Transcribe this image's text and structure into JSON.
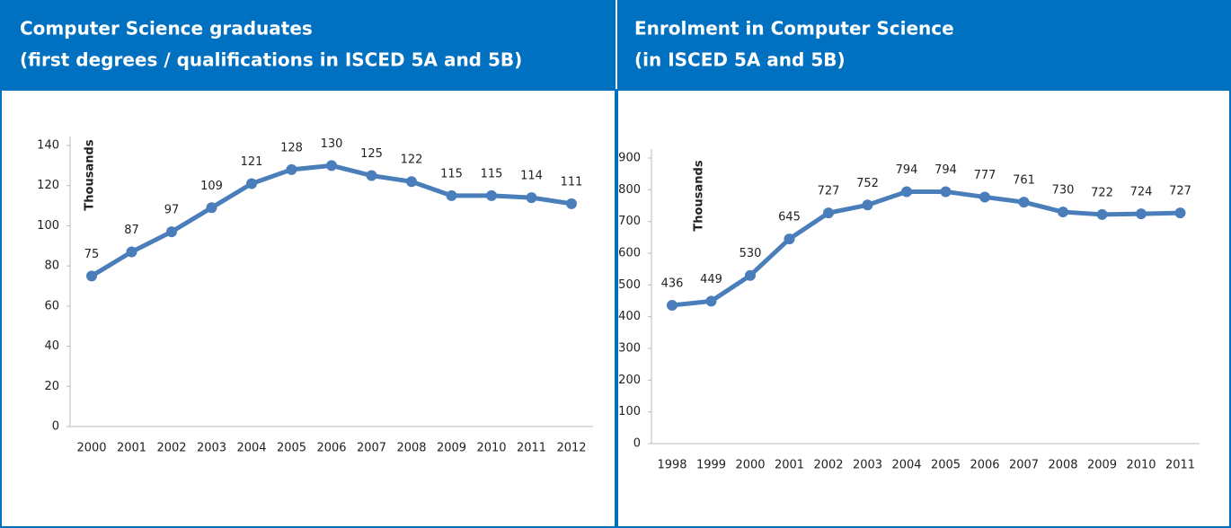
{
  "chart_data": [
    {
      "type": "line",
      "title": "Computer Science graduates",
      "subtitle": "(first degrees / qualifications in ISCED 5A and 5B)",
      "y_label": "Thousands",
      "color": "#4a7ebb",
      "categories": [
        "2000",
        "2001",
        "2002",
        "2003",
        "2004",
        "2005",
        "2006",
        "2007",
        "2008",
        "2009",
        "2010",
        "2011",
        "2012"
      ],
      "values": [
        75,
        87,
        97,
        109,
        121,
        128,
        130,
        125,
        122,
        115,
        115,
        114,
        111
      ],
      "ylim": [
        0,
        140
      ],
      "yticks": [
        0,
        20,
        40,
        60,
        80,
        100,
        120,
        140
      ]
    },
    {
      "type": "line",
      "title": "Enrolment in Computer Science",
      "subtitle": "(in ISCED 5A and 5B)",
      "y_label": "Thousands",
      "color": "#4a7ebb",
      "categories": [
        "1998",
        "1999",
        "2000",
        "2001",
        "2002",
        "2003",
        "2004",
        "2005",
        "2006",
        "2007",
        "2008",
        "2009",
        "2010",
        "2011"
      ],
      "values": [
        436,
        449,
        530,
        645,
        727,
        752,
        794,
        794,
        777,
        761,
        730,
        722,
        724,
        727
      ],
      "ylim": [
        0,
        900
      ],
      "yticks": [
        0,
        100,
        200,
        300,
        400,
        500,
        600,
        700,
        800,
        900
      ]
    }
  ]
}
